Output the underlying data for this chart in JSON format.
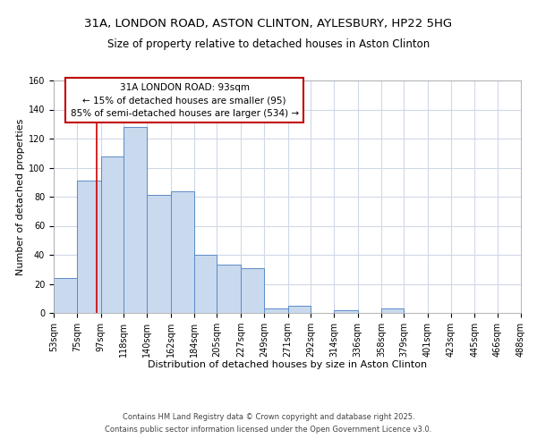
{
  "title_line1": "31A, LONDON ROAD, ASTON CLINTON, AYLESBURY, HP22 5HG",
  "title_line2": "Size of property relative to detached houses in Aston Clinton",
  "xlabel": "Distribution of detached houses by size in Aston Clinton",
  "ylabel": "Number of detached properties",
  "bar_left_edges": [
    53,
    75,
    97,
    118,
    140,
    162,
    184,
    205,
    227,
    249,
    271,
    292,
    314,
    336,
    358,
    379,
    401,
    423,
    445,
    466
  ],
  "bar_widths": [
    22,
    22,
    21,
    22,
    22,
    22,
    21,
    22,
    22,
    22,
    21,
    22,
    22,
    22,
    21,
    22,
    22,
    22,
    21,
    22
  ],
  "bar_heights": [
    24,
    91,
    108,
    128,
    81,
    84,
    40,
    33,
    31,
    3,
    5,
    0,
    2,
    0,
    3,
    0,
    0,
    0,
    0,
    0
  ],
  "bar_color": "#c9d9ee",
  "bar_edge_color": "#5b8cc8",
  "redline_x": 93,
  "ylim": [
    0,
    160
  ],
  "yticks": [
    0,
    20,
    40,
    60,
    80,
    100,
    120,
    140,
    160
  ],
  "xtick_labels": [
    "53sqm",
    "75sqm",
    "97sqm",
    "118sqm",
    "140sqm",
    "162sqm",
    "184sqm",
    "205sqm",
    "227sqm",
    "249sqm",
    "271sqm",
    "292sqm",
    "314sqm",
    "336sqm",
    "358sqm",
    "379sqm",
    "401sqm",
    "423sqm",
    "445sqm",
    "466sqm",
    "488sqm"
  ],
  "xtick_positions": [
    53,
    75,
    97,
    118,
    140,
    162,
    184,
    205,
    227,
    249,
    271,
    292,
    314,
    336,
    358,
    379,
    401,
    423,
    445,
    466,
    488
  ],
  "annotation_title": "31A LONDON ROAD: 93sqm",
  "annotation_line2": "← 15% of detached houses are smaller (95)",
  "annotation_line3": "85% of semi-detached houses are larger (534) →",
  "annotation_box_facecolor": "#ffffff",
  "annotation_box_edgecolor": "#c00000",
  "footer_line1": "Contains HM Land Registry data © Crown copyright and database right 2025.",
  "footer_line2": "Contains public sector information licensed under the Open Government Licence v3.0.",
  "background_color": "#ffffff",
  "grid_color": "#d0d8e8",
  "title_fontsize": 9.5,
  "subtitle_fontsize": 8.5,
  "axis_label_fontsize": 8,
  "tick_fontsize": 7,
  "annotation_fontsize": 7.5,
  "footer_fontsize": 6
}
